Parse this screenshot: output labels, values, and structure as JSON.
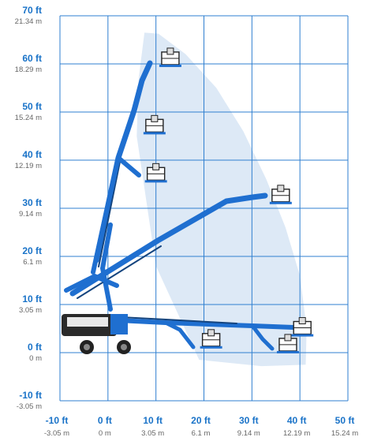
{
  "colors": {
    "grid": "#2f7fd0",
    "label_ft": "#1a73c8",
    "label_m": "#666666",
    "envelope": "#dde9f6",
    "boom": "#1f6fd0",
    "boom_dark": "#14447e",
    "machine": "#2a2a2a"
  },
  "chart_data": {
    "type": "working-range-diagram",
    "grid": true,
    "xlim": [
      -10,
      50
    ],
    "ylim": [
      -10,
      70
    ],
    "x_ticks": [
      {
        "ft": "-10 ft",
        "m": "-3.05 m"
      },
      {
        "ft": "0 ft",
        "m": "0 m"
      },
      {
        "ft": "10 ft",
        "m": "3.05 m"
      },
      {
        "ft": "20 ft",
        "m": "6.1 m"
      },
      {
        "ft": "30 ft",
        "m": "9.14 m"
      },
      {
        "ft": "40 ft",
        "m": "12.19 m"
      },
      {
        "ft": "50 ft",
        "m": "15.24 m"
      }
    ],
    "y_ticks": [
      {
        "ft": "70 ft",
        "m": "21.34 m"
      },
      {
        "ft": "60 ft",
        "m": "18.29 m"
      },
      {
        "ft": "50 ft",
        "m": "15.24 m"
      },
      {
        "ft": "40 ft",
        "m": "12.19 m"
      },
      {
        "ft": "30 ft",
        "m": "9.14 m"
      },
      {
        "ft": "20 ft",
        "m": "6.1 m"
      },
      {
        "ft": "10 ft",
        "m": "3.05 m"
      },
      {
        "ft": "0 ft",
        "m": "0 m"
      },
      {
        "ft": "-10 ft",
        "m": "-3.05 m"
      }
    ],
    "envelope": [
      [
        7.6,
        66.5
      ],
      [
        10.5,
        66.3
      ],
      [
        16.2,
        62
      ],
      [
        22.6,
        55
      ],
      [
        28.2,
        46
      ],
      [
        33,
        36
      ],
      [
        37,
        26
      ],
      [
        40,
        16
      ],
      [
        41.4,
        5
      ],
      [
        41.2,
        -2.5
      ],
      [
        32,
        -2.8
      ],
      [
        19,
        -1.5
      ],
      [
        10,
        18
      ],
      [
        6,
        45
      ],
      [
        6.4,
        57
      ]
    ],
    "platforms": [
      {
        "x": 13.0,
        "y": 60.5
      },
      {
        "x": 9.7,
        "y": 46.5
      },
      {
        "x": 10.0,
        "y": 36.5
      },
      {
        "x": 36.0,
        "y": 32.0
      },
      {
        "x": 21.5,
        "y": 2.0
      },
      {
        "x": 40.5,
        "y": 4.5
      },
      {
        "x": 37.5,
        "y": 1.0
      }
    ]
  }
}
